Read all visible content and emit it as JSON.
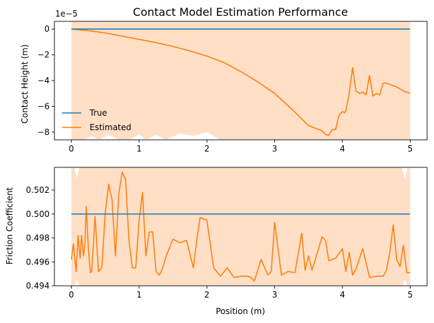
{
  "chart_data": [
    {
      "type": "line",
      "title": "Contact Model Estimation Performance",
      "xlabel": "",
      "ylabel": "Contact Height (m)",
      "offset_label": "1e−5",
      "xlim": [
        -0.25,
        5.25
      ],
      "ylim": [
        -8.6,
        0.6
      ],
      "xticks": [
        0,
        1,
        2,
        3,
        4,
        5
      ],
      "xtick_labels": [
        "0",
        "1",
        "2",
        "3",
        "4",
        "5"
      ],
      "yticks": [
        0,
        -2,
        -4,
        -6,
        -8
      ],
      "ytick_labels": [
        "0",
        "−2",
        "−4",
        "−6",
        "−8"
      ],
      "legend": {
        "placement": "lower-left",
        "entries": [
          "True",
          "Estimated"
        ]
      },
      "colors": {
        "true": "#1f77b4",
        "estimated": "#ff7f0e",
        "band": "#ffdcc0"
      },
      "series": [
        {
          "name": "True",
          "x": [
            0,
            5
          ],
          "y": [
            0,
            0
          ]
        },
        {
          "name": "Estimated",
          "x": [
            0,
            0.25,
            0.5,
            0.75,
            1.0,
            1.25,
            1.5,
            1.75,
            2.0,
            2.25,
            2.5,
            2.75,
            3.0,
            3.25,
            3.5,
            3.6,
            3.7,
            3.75,
            3.8,
            3.85,
            3.9,
            3.95,
            4.0,
            4.03,
            4.05,
            4.1,
            4.15,
            4.2,
            4.25,
            4.3,
            4.35,
            4.4,
            4.45,
            4.5,
            4.55,
            4.6,
            4.65,
            4.7,
            4.8,
            4.9,
            5.0
          ],
          "y": [
            0,
            -0.12,
            -0.3,
            -0.55,
            -0.8,
            -1.05,
            -1.35,
            -1.7,
            -2.1,
            -2.6,
            -3.3,
            -4.1,
            -5.0,
            -6.2,
            -7.5,
            -7.7,
            -7.9,
            -8.2,
            -8.25,
            -7.8,
            -7.8,
            -6.7,
            -6.4,
            -6.5,
            -6.35,
            -5.0,
            -3.0,
            -4.8,
            -5.0,
            -4.9,
            -5.1,
            -3.6,
            -5.2,
            -5.0,
            -5.1,
            -4.2,
            -4.2,
            -4.3,
            -4.5,
            -4.8,
            -5.0
          ]
        }
      ],
      "band": {
        "x": [
          0,
          0.2,
          0.3,
          0.4,
          0.55,
          0.7,
          0.85,
          1.0,
          1.1,
          1.25,
          1.4,
          1.6,
          1.8,
          2.0,
          2.2,
          2.4,
          2.6,
          2.8,
          3.0,
          3.3,
          3.6,
          4.0,
          4.3,
          4.7,
          5.0
        ],
        "lower": [
          -8.6,
          -8.6,
          -8.3,
          -8.6,
          -8.2,
          -8.6,
          -8.6,
          -8.2,
          -8.6,
          -8.2,
          -8.6,
          -8.1,
          -8.3,
          -8.0,
          -8.6,
          -8.6,
          -8.6,
          -8.6,
          -8.6,
          -8.6,
          -8.6,
          -8.6,
          -8.6,
          -8.6,
          -8.6
        ]
      }
    },
    {
      "type": "line",
      "title": "",
      "xlabel": "Position (m)",
      "ylabel": "Friction Coefficient",
      "xlim": [
        -0.25,
        5.25
      ],
      "ylim": [
        0.494,
        0.5039
      ],
      "xticks": [
        0,
        1,
        2,
        3,
        4,
        5
      ],
      "xtick_labels": [
        "0",
        "1",
        "2",
        "3",
        "4",
        "5"
      ],
      "yticks": [
        0.494,
        0.496,
        0.498,
        0.5,
        0.502
      ],
      "ytick_labels": [
        "0.494",
        "0.496",
        "0.498",
        "0.500",
        "0.502"
      ],
      "colors": {
        "true": "#1f77b4",
        "estimated": "#ff7f0e",
        "band": "#ffdcc0"
      },
      "series": [
        {
          "name": "True",
          "x": [
            0,
            5
          ],
          "y": [
            0.5,
            0.5
          ]
        },
        {
          "name": "Estimated",
          "x": [
            0,
            0.03,
            0.07,
            0.1,
            0.13,
            0.15,
            0.18,
            0.2,
            0.22,
            0.25,
            0.28,
            0.3,
            0.35,
            0.4,
            0.45,
            0.5,
            0.55,
            0.6,
            0.65,
            0.7,
            0.75,
            0.8,
            0.85,
            0.9,
            0.95,
            1.0,
            1.05,
            1.1,
            1.15,
            1.2,
            1.25,
            1.3,
            1.35,
            1.4,
            1.5,
            1.6,
            1.7,
            1.8,
            1.85,
            1.9,
            2.0,
            2.1,
            2.2,
            2.3,
            2.4,
            2.5,
            2.6,
            2.65,
            2.7,
            2.8,
            2.9,
            2.95,
            3.0,
            3.1,
            3.2,
            3.3,
            3.4,
            3.45,
            3.5,
            3.55,
            3.6,
            3.7,
            3.75,
            3.8,
            3.9,
            4.0,
            4.05,
            4.1,
            4.15,
            4.2,
            4.3,
            4.4,
            4.5,
            4.6,
            4.65,
            4.7,
            4.75,
            4.8,
            4.85,
            4.9,
            4.95,
            5.0
          ],
          "y": [
            0.4962,
            0.4975,
            0.4952,
            0.4982,
            0.4963,
            0.4982,
            0.4965,
            0.4975,
            0.5006,
            0.4972,
            0.4951,
            0.4952,
            0.4998,
            0.4952,
            0.4955,
            0.5001,
            0.5025,
            0.5012,
            0.4965,
            0.5017,
            0.5035,
            0.5029,
            0.4978,
            0.4955,
            0.4955,
            0.4995,
            0.5018,
            0.4965,
            0.4985,
            0.4985,
            0.4952,
            0.4949,
            0.4955,
            0.4965,
            0.4979,
            0.4976,
            0.4978,
            0.4955,
            0.4978,
            0.4997,
            0.4995,
            0.4955,
            0.4948,
            0.4955,
            0.4947,
            0.4948,
            0.4948,
            0.4947,
            0.4944,
            0.4962,
            0.4949,
            0.4952,
            0.4993,
            0.4949,
            0.4952,
            0.4951,
            0.4984,
            0.4953,
            0.4965,
            0.4953,
            0.4962,
            0.4981,
            0.4978,
            0.4961,
            0.4963,
            0.4971,
            0.4952,
            0.4968,
            0.4949,
            0.4954,
            0.4971,
            0.4947,
            0.4948,
            0.4948,
            0.4953,
            0.4968,
            0.4991,
            0.4962,
            0.4956,
            0.4974,
            0.4951,
            0.4951
          ]
        }
      ],
      "band": {
        "x": [
          0,
          0.04,
          0.08,
          0.12,
          4.88,
          4.92,
          4.96,
          5.0
        ],
        "lower": [
          0.494,
          0.494,
          0.4945,
          0.494,
          0.494,
          0.4945,
          0.494,
          0.494
        ],
        "upper": [
          0.5039,
          0.5039,
          0.503,
          0.5039,
          0.5039,
          0.5028,
          0.5039,
          0.5039
        ]
      }
    }
  ]
}
